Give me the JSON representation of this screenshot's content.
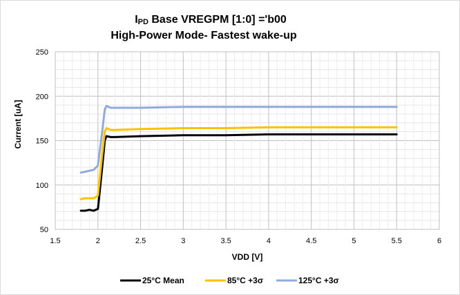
{
  "chart_data": {
    "type": "line",
    "title_prefix": "I",
    "title_sub": "PD",
    "title_rest": " Base VREGPM [1:0] ='b00",
    "subtitle": "High-Power Mode- Fastest wake-up",
    "xlabel": "VDD [V]",
    "ylabel": "Current [uA]",
    "xlim": [
      1.5,
      6
    ],
    "ylim": [
      50,
      250
    ],
    "x_ticks": [
      "1.5",
      "2",
      "2.5",
      "3",
      "3.5",
      "4",
      "4.5",
      "5",
      "5.5",
      "6"
    ],
    "y_ticks": [
      "50",
      "100",
      "150",
      "200",
      "250"
    ],
    "grid": true,
    "legend_position": "bottom",
    "series": [
      {
        "name": "25°C Mean",
        "color": "#000000",
        "x": [
          1.8,
          1.85,
          1.9,
          1.95,
          2.0,
          2.05,
          2.08,
          2.1,
          2.15,
          2.2,
          2.5,
          3.0,
          3.5,
          4.0,
          4.5,
          5.0,
          5.5
        ],
        "y": [
          71,
          71,
          72,
          71,
          73,
          120,
          150,
          155,
          154,
          154,
          155,
          156,
          156,
          157,
          157,
          157,
          157
        ]
      },
      {
        "name": "85°C +3σ",
        "color": "#FFC000",
        "x": [
          1.8,
          1.85,
          1.9,
          1.95,
          2.0,
          2.05,
          2.08,
          2.1,
          2.15,
          2.2,
          2.5,
          3.0,
          3.5,
          4.0,
          4.5,
          5.0,
          5.5
        ],
        "y": [
          84,
          85,
          85,
          85,
          88,
          135,
          160,
          164,
          162,
          162,
          163,
          164,
          164,
          165,
          165,
          165,
          165
        ]
      },
      {
        "name": "125°C +3σ",
        "color": "#8FAADC",
        "x": [
          1.8,
          1.85,
          1.9,
          1.95,
          2.0,
          2.05,
          2.08,
          2.1,
          2.15,
          2.2,
          2.5,
          3.0,
          3.5,
          4.0,
          4.5,
          5.0,
          5.5
        ],
        "y": [
          114,
          115,
          116,
          117,
          122,
          160,
          185,
          189,
          187,
          187,
          187,
          188,
          188,
          188,
          188,
          188,
          188
        ]
      }
    ]
  }
}
